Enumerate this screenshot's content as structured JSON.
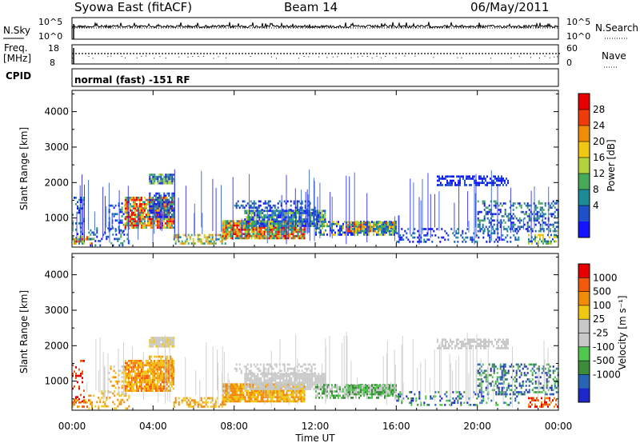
{
  "header": {
    "title": "Syowa East (fitACF)",
    "beam": "Beam 14",
    "date": "06/May/2011"
  },
  "top_panels": {
    "nsky_label": "N.Sky",
    "nsearch_label": "N.Search",
    "nsky_ticks": [
      "10^5",
      "10^0"
    ],
    "nsearch_ticks": [
      "10^5",
      "10^0"
    ],
    "freq_label": [
      "Freq.",
      "[MHz]"
    ],
    "freq_ticks": [
      "18",
      "8"
    ],
    "nave_label": "Nave",
    "nave_ticks": [
      "60",
      "0"
    ],
    "cpid_label": "CPID",
    "cpid_value": "normal (fast) -151 RF"
  },
  "chart_data": [
    {
      "type": "heatmap",
      "name": "power-panel",
      "ylabel": "Slant Range [km]",
      "yticks": [
        "4000",
        "3000",
        "2000",
        "1000"
      ],
      "ylim": [
        180,
        4600
      ],
      "colorbar": {
        "label": "Power [dB]",
        "ticks": [
          "28",
          "24",
          "20",
          "16",
          "12",
          "8",
          "4"
        ],
        "colors": [
          "#1414ff",
          "#1e50c8",
          "#1e8c96",
          "#46aa5a",
          "#b4d23c",
          "#f0c814",
          "#f08c0a",
          "#ee3c0a",
          "#e60000"
        ]
      }
    },
    {
      "type": "heatmap",
      "name": "velocity-panel",
      "ylabel": "Slant Range [km]",
      "yticks": [
        "4000",
        "3000",
        "2000",
        "1000"
      ],
      "ylim": [
        180,
        4600
      ],
      "colorbar": {
        "label": "Velocity [m s⁻¹]",
        "ticks": [
          "1000",
          "500",
          "100",
          "25",
          "-25",
          "-100",
          "-500",
          "-1000"
        ],
        "colors": [
          "#1e28c8",
          "#2864b4",
          "#3c8c3c",
          "#50c850",
          "#c8c8c8",
          "#c8c8c8",
          "#f0c814",
          "#f08c0a",
          "#f05a0a",
          "#e60000"
        ]
      }
    }
  ],
  "xaxis": {
    "label": "Time UT",
    "ticks": [
      "00:00",
      "04:00",
      "08:00",
      "12:00",
      "16:00",
      "20:00",
      "00:00"
    ]
  }
}
